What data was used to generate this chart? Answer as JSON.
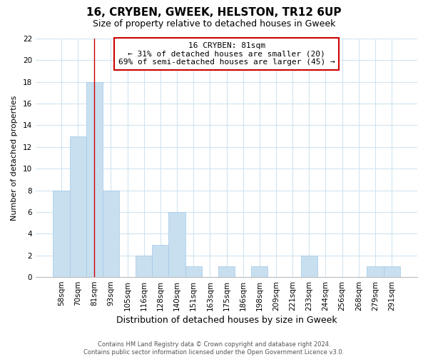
{
  "title": "16, CRYBEN, GWEEK, HELSTON, TR12 6UP",
  "subtitle": "Size of property relative to detached houses in Gweek",
  "xlabel": "Distribution of detached houses by size in Gweek",
  "ylabel": "Number of detached properties",
  "footer_line1": "Contains HM Land Registry data © Crown copyright and database right 2024.",
  "footer_line2": "Contains public sector information licensed under the Open Government Licence v3.0.",
  "annotation_title": "16 CRYBEN: 81sqm",
  "annotation_line1": "← 31% of detached houses are smaller (20)",
  "annotation_line2": "69% of semi-detached houses are larger (45) →",
  "bar_color": "#c8dff0",
  "bar_edge_color": "#a0c8e8",
  "marker_color": "#cc0000",
  "marker_idx": 2,
  "categories": [
    "58sqm",
    "70sqm",
    "81sqm",
    "93sqm",
    "105sqm",
    "116sqm",
    "128sqm",
    "140sqm",
    "151sqm",
    "163sqm",
    "175sqm",
    "186sqm",
    "198sqm",
    "209sqm",
    "221sqm",
    "233sqm",
    "244sqm",
    "256sqm",
    "268sqm",
    "279sqm",
    "291sqm"
  ],
  "values": [
    8,
    13,
    18,
    8,
    0,
    2,
    3,
    6,
    1,
    0,
    1,
    0,
    1,
    0,
    0,
    2,
    0,
    0,
    0,
    1,
    1
  ],
  "ylim": [
    0,
    22
  ],
  "yticks": [
    0,
    2,
    4,
    6,
    8,
    10,
    12,
    14,
    16,
    18,
    20,
    22
  ],
  "grid_color": "#d0e4f0",
  "background_color": "#ffffff",
  "title_fontsize": 11,
  "subtitle_fontsize": 9,
  "xlabel_fontsize": 9,
  "ylabel_fontsize": 8,
  "tick_fontsize": 7.5,
  "footer_fontsize": 6,
  "annotation_fontsize": 8
}
